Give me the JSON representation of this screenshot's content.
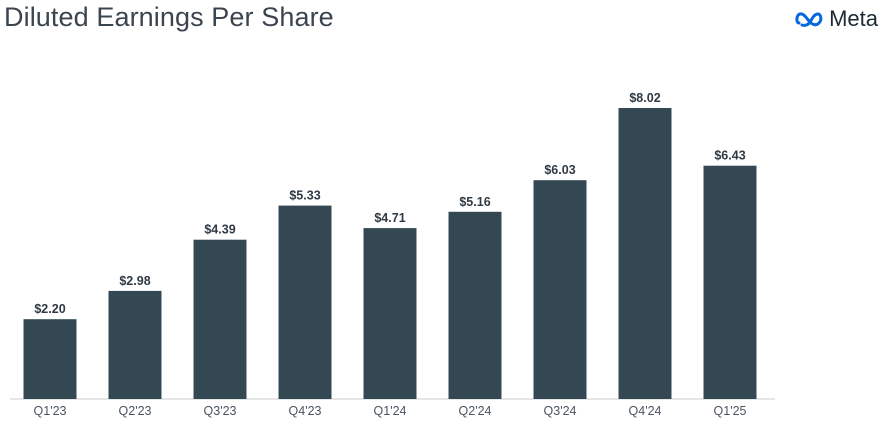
{
  "brand": {
    "name": "Meta",
    "icon": "meta-infinity-icon",
    "color": "#0668E1"
  },
  "colors": {
    "bar": "#344854",
    "title": "#3b4550"
  },
  "chart_data": {
    "type": "bar",
    "title": "Diluted Earnings Per Share",
    "xlabel": "",
    "ylabel": "",
    "categories": [
      "Q1'23",
      "Q2'23",
      "Q3'23",
      "Q4'23",
      "Q1'24",
      "Q2'24",
      "Q3'24",
      "Q4'24",
      "Q1'25"
    ],
    "values": [
      2.2,
      2.98,
      4.39,
      5.33,
      4.71,
      5.16,
      6.03,
      8.02,
      6.43
    ],
    "labels": [
      "$2.20",
      "$2.98",
      "$4.39",
      "$5.33",
      "$4.71",
      "$5.16",
      "$6.03",
      "$8.02",
      "$6.43"
    ],
    "ylim": [
      0,
      8.02
    ],
    "grid": false,
    "legend": "none"
  }
}
